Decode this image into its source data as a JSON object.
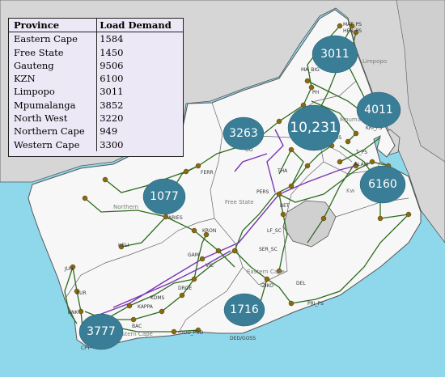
{
  "legend": {
    "header_province": "Province",
    "header_load": "Load Demand",
    "rows": [
      {
        "province": "Eastern Cape",
        "load": "1584"
      },
      {
        "province": "Free State",
        "load": "1450"
      },
      {
        "province": "Gauteng",
        "load": "9506"
      },
      {
        "province": "KZN",
        "load": "6100"
      },
      {
        "province": "Limpopo",
        "load": "3011"
      },
      {
        "province": "Mpumalanga",
        "load": "3852"
      },
      {
        "province": "North West",
        "load": "3220"
      },
      {
        "province": "Northern Cape",
        "load": "949"
      },
      {
        "province": "Western Cape",
        "load": "3300"
      }
    ]
  },
  "bubbles": [
    {
      "label": "3011"
    },
    {
      "label": "4011"
    },
    {
      "label": "10,231"
    },
    {
      "label": "3263"
    },
    {
      "label": "6160"
    },
    {
      "label": "1077"
    },
    {
      "label": "1716"
    },
    {
      "label": "3777"
    }
  ],
  "region_labels": [
    "Limpopo",
    "Mpuma",
    "Free State",
    "Northern",
    "Eastern Cape",
    "Western Cape",
    "Kw"
  ],
  "node_labels": [
    "MAT_PS",
    "HEN_PS",
    "MA_BIG",
    "PH",
    "KRI_PS",
    "ZEUS",
    "T_PS",
    "ALAM",
    "OO",
    "FERR",
    "THA",
    "PERS",
    "BET",
    "ARIES",
    "KRON",
    "HELI",
    "LF_SC",
    "SER_SC",
    "GAM",
    "VIC",
    "DROE",
    "KOMS",
    "KAPPA",
    "IZIKO",
    "DEL",
    "PRI_PS",
    "AUR",
    "JUN",
    "ANK",
    "BAC",
    "GOU_PRO",
    "DED/GOSS",
    "CPT"
  ],
  "colors": {
    "sea": "#8fd8ec",
    "land": "#f7f7f7",
    "neighbor": "#d6d6d6",
    "lesotho": "#d0d0d0",
    "line_green": "#2e6b1f",
    "line_purple": "#7a36b1",
    "node": "#8a6a10",
    "bubble": "#3a7d96"
  }
}
